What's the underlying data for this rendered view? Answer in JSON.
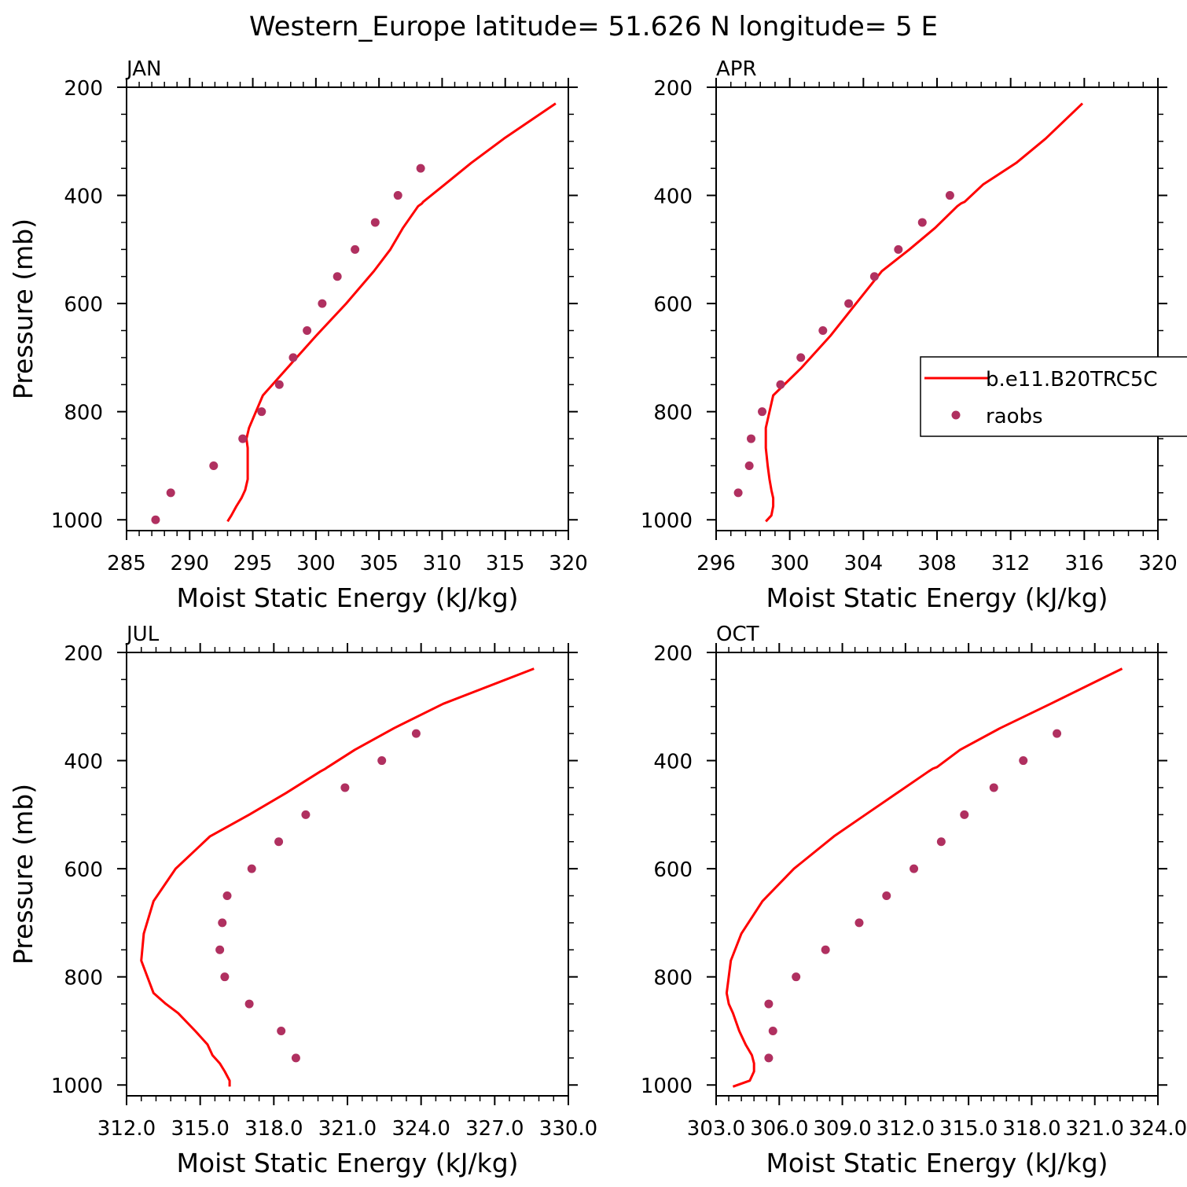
{
  "figure": {
    "title": "Western_Europe  latitude= 51.626 N longitude= 5 E"
  },
  "colors": {
    "model": "#ff0000",
    "obs": "#b03060",
    "axis": "#000000"
  },
  "legend": {
    "model_label": "b.e11.B20TRC5C",
    "obs_label": "raobs",
    "panel": "APR",
    "placement": "right"
  },
  "chart_data": [
    {
      "type": "line",
      "panel_label": "JAN",
      "xlabel": "Moist Static Energy (kJ/kg)",
      "ylabel": "Pressure (mb)",
      "xlim": [
        285,
        320
      ],
      "ylim": [
        1020,
        200
      ],
      "xticks": [
        285,
        290,
        295,
        300,
        305,
        310,
        315,
        320
      ],
      "xtick_labels": [
        "285",
        "290",
        "295",
        "300",
        "305",
        "310",
        "315",
        "320"
      ],
      "yticks": [
        200,
        400,
        600,
        800,
        1000
      ],
      "ytick_labels": [
        "200",
        "400",
        "600",
        "800",
        "1000"
      ],
      "series": [
        {
          "name": "b.e11.B20TRC5C",
          "style": "line",
          "points": [
            [
              293.0,
              1003
            ],
            [
              293.3,
              992
            ],
            [
              293.7,
              975
            ],
            [
              294.1,
              960
            ],
            [
              294.4,
              945
            ],
            [
              294.6,
              925
            ],
            [
              294.6,
              900
            ],
            [
              294.6,
              867
            ],
            [
              294.5,
              850
            ],
            [
              294.7,
              830
            ],
            [
              295.8,
              770
            ],
            [
              297.7,
              720
            ],
            [
              300.0,
              660
            ],
            [
              302.4,
              600
            ],
            [
              304.6,
              540
            ],
            [
              305.9,
              500
            ],
            [
              306.9,
              460
            ],
            [
              308.1,
              420
            ],
            [
              308.4,
              415
            ],
            [
              308.5,
              412
            ],
            [
              310.2,
              380
            ],
            [
              312.3,
              340
            ],
            [
              314.9,
              295
            ],
            [
              319.0,
              230
            ]
          ]
        },
        {
          "name": "raobs",
          "style": "scatter",
          "points": [
            [
              287.3,
              1000
            ],
            [
              288.5,
              950
            ],
            [
              291.9,
              900
            ],
            [
              294.2,
              850
            ],
            [
              295.7,
              800
            ],
            [
              297.1,
              750
            ],
            [
              298.2,
              700
            ],
            [
              299.3,
              650
            ],
            [
              300.5,
              600
            ],
            [
              301.7,
              550
            ],
            [
              303.1,
              500
            ],
            [
              304.7,
              450
            ],
            [
              306.5,
              400
            ],
            [
              308.3,
              350
            ]
          ]
        }
      ]
    },
    {
      "type": "line",
      "panel_label": "APR",
      "xlabel": "Moist Static Energy (kJ/kg)",
      "ylabel": "",
      "xlim": [
        296,
        320
      ],
      "ylim": [
        1020,
        200
      ],
      "xticks": [
        296,
        300,
        304,
        308,
        312,
        316,
        320
      ],
      "xtick_labels": [
        "296",
        "300",
        "304",
        "308",
        "312",
        "316",
        "320"
      ],
      "yticks": [
        200,
        400,
        600,
        800,
        1000
      ],
      "ytick_labels": [
        "200",
        "400",
        "600",
        "800",
        "1000"
      ],
      "series": [
        {
          "name": "b.e11.B20TRC5C",
          "style": "line",
          "points": [
            [
              298.7,
              1003
            ],
            [
              299.0,
              992
            ],
            [
              299.1,
              975
            ],
            [
              299.1,
              960
            ],
            [
              299.0,
              945
            ],
            [
              298.9,
              925
            ],
            [
              298.8,
              900
            ],
            [
              298.7,
              867
            ],
            [
              298.7,
              850
            ],
            [
              298.7,
              830
            ],
            [
              299.1,
              770
            ],
            [
              300.6,
              720
            ],
            [
              302.2,
              660
            ],
            [
              303.6,
              600
            ],
            [
              305.0,
              540
            ],
            [
              306.5,
              500
            ],
            [
              307.9,
              460
            ],
            [
              309.1,
              420
            ],
            [
              309.3,
              415
            ],
            [
              309.5,
              412
            ],
            [
              310.5,
              380
            ],
            [
              312.3,
              340
            ],
            [
              313.9,
              295
            ],
            [
              315.9,
              230
            ]
          ]
        },
        {
          "name": "raobs",
          "style": "scatter",
          "points": [
            [
              297.2,
              950
            ],
            [
              297.8,
              900
            ],
            [
              297.9,
              850
            ],
            [
              298.5,
              800
            ],
            [
              299.5,
              750
            ],
            [
              300.6,
              700
            ],
            [
              301.8,
              650
            ],
            [
              303.2,
              600
            ],
            [
              304.6,
              550
            ],
            [
              305.9,
              500
            ],
            [
              307.2,
              450
            ],
            [
              308.7,
              400
            ]
          ]
        }
      ]
    },
    {
      "type": "line",
      "panel_label": "JUL",
      "xlabel": "Moist Static Energy (kJ/kg)",
      "ylabel": "Pressure (mb)",
      "xlim": [
        312,
        330
      ],
      "ylim": [
        1020,
        200
      ],
      "xticks": [
        312,
        315,
        318,
        321,
        324,
        327,
        330
      ],
      "xtick_labels": [
        "312.0",
        "315.0",
        "318.0",
        "321.0",
        "324.0",
        "327.0",
        "330.0"
      ],
      "yticks": [
        200,
        400,
        600,
        800,
        1000
      ],
      "ytick_labels": [
        "200",
        "400",
        "600",
        "800",
        "1000"
      ],
      "series": [
        {
          "name": "b.e11.B20TRC5C",
          "style": "line",
          "points": [
            [
              316.2,
              1003
            ],
            [
              316.2,
              992
            ],
            [
              316.0,
              975
            ],
            [
              315.8,
              960
            ],
            [
              315.5,
              945
            ],
            [
              315.3,
              925
            ],
            [
              314.8,
              900
            ],
            [
              314.1,
              867
            ],
            [
              313.6,
              850
            ],
            [
              313.1,
              830
            ],
            [
              312.6,
              770
            ],
            [
              312.7,
              720
            ],
            [
              313.1,
              660
            ],
            [
              314.0,
              600
            ],
            [
              315.4,
              540
            ],
            [
              317.0,
              500
            ],
            [
              318.5,
              460
            ],
            [
              319.9,
              420
            ],
            [
              320.1,
              415
            ],
            [
              320.2,
              412
            ],
            [
              321.3,
              380
            ],
            [
              322.9,
              340
            ],
            [
              324.9,
              295
            ],
            [
              328.6,
              230
            ]
          ]
        },
        {
          "name": "raobs",
          "style": "scatter",
          "points": [
            [
              318.9,
              950
            ],
            [
              318.3,
              900
            ],
            [
              317.0,
              850
            ],
            [
              316.0,
              800
            ],
            [
              315.8,
              750
            ],
            [
              315.9,
              700
            ],
            [
              316.1,
              650
            ],
            [
              317.1,
              600
            ],
            [
              318.2,
              550
            ],
            [
              319.3,
              500
            ],
            [
              320.9,
              450
            ],
            [
              322.4,
              400
            ],
            [
              323.8,
              350
            ]
          ]
        }
      ]
    },
    {
      "type": "line",
      "panel_label": "OCT",
      "xlabel": "Moist Static Energy (kJ/kg)",
      "ylabel": "",
      "xlim": [
        303,
        324
      ],
      "ylim": [
        1020,
        200
      ],
      "xticks": [
        303,
        306,
        309,
        312,
        315,
        318,
        321,
        324
      ],
      "xtick_labels": [
        "303.0",
        "306.0",
        "309.0",
        "312.0",
        "315.0",
        "318.0",
        "321.0",
        "324.0"
      ],
      "yticks": [
        200,
        400,
        600,
        800,
        1000
      ],
      "ytick_labels": [
        "200",
        "400",
        "600",
        "800",
        "1000"
      ],
      "series": [
        {
          "name": "b.e11.B20TRC5C",
          "style": "line",
          "points": [
            [
              303.8,
              1003
            ],
            [
              304.6,
              992
            ],
            [
              304.8,
              975
            ],
            [
              304.8,
              960
            ],
            [
              304.7,
              945
            ],
            [
              304.4,
              925
            ],
            [
              304.1,
              900
            ],
            [
              303.8,
              867
            ],
            [
              303.6,
              850
            ],
            [
              303.5,
              830
            ],
            [
              303.7,
              770
            ],
            [
              304.2,
              720
            ],
            [
              305.2,
              660
            ],
            [
              306.7,
              600
            ],
            [
              308.6,
              540
            ],
            [
              310.1,
              500
            ],
            [
              311.6,
              460
            ],
            [
              313.1,
              420
            ],
            [
              313.3,
              415
            ],
            [
              313.5,
              412
            ],
            [
              314.6,
              380
            ],
            [
              316.5,
              340
            ],
            [
              318.9,
              295
            ],
            [
              322.3,
              230
            ]
          ]
        },
        {
          "name": "raobs",
          "style": "scatter",
          "points": [
            [
              305.5,
              950
            ],
            [
              305.7,
              900
            ],
            [
              305.5,
              850
            ],
            [
              306.8,
              800
            ],
            [
              308.2,
              750
            ],
            [
              309.8,
              700
            ],
            [
              311.1,
              650
            ],
            [
              312.4,
              600
            ],
            [
              313.7,
              550
            ],
            [
              314.8,
              500
            ],
            [
              316.2,
              450
            ],
            [
              317.6,
              400
            ],
            [
              319.2,
              350
            ]
          ]
        }
      ]
    }
  ]
}
